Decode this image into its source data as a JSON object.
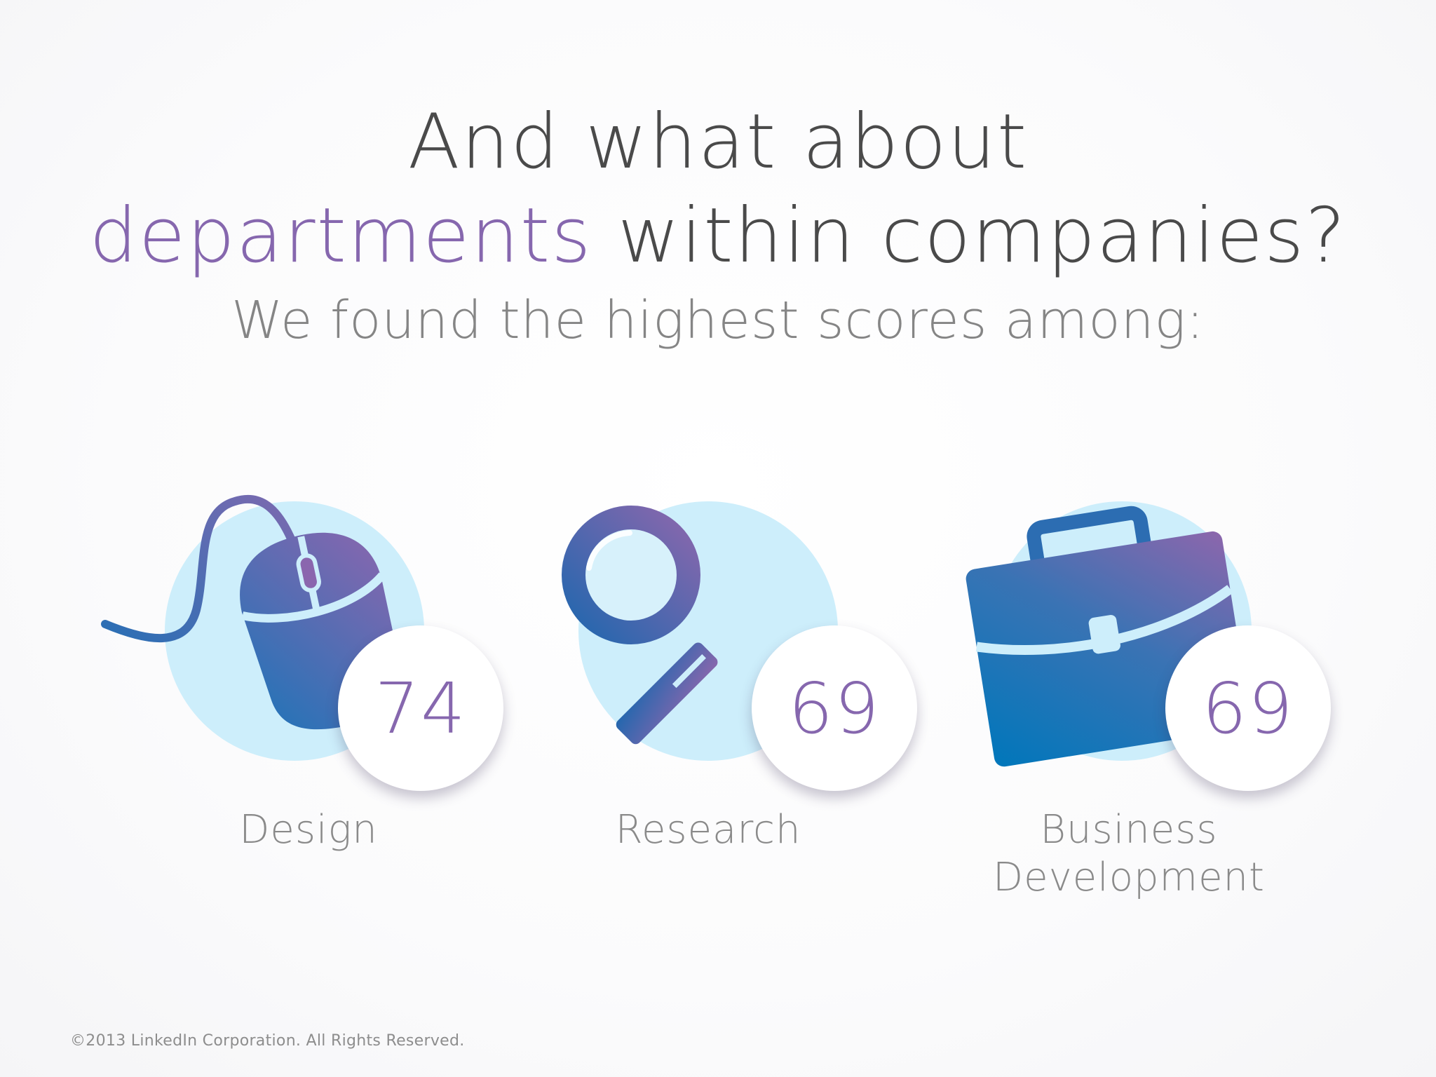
{
  "headline": {
    "line1": "And what about",
    "line2_accent": "departments",
    "line2_rest": " within companies?",
    "subline": "We found the highest scores among:"
  },
  "departments": [
    {
      "label": "Design",
      "score": "74",
      "icon": "computer-mouse-icon"
    },
    {
      "label": "Research",
      "score": "69",
      "icon": "magnifying-glass-icon"
    },
    {
      "label_line1": "Business",
      "label_line2": "Development",
      "score": "69",
      "icon": "briefcase-icon"
    }
  ],
  "footer": {
    "copyright": "©2013 LinkedIn Corporation. All Rights Reserved."
  },
  "colors": {
    "accent_purple": "#8667ae",
    "icon_blue": "#2b6fb3",
    "circle_light_blue": "#cdeefb",
    "text_dark": "#4a4a4a",
    "text_gray": "#858585"
  }
}
